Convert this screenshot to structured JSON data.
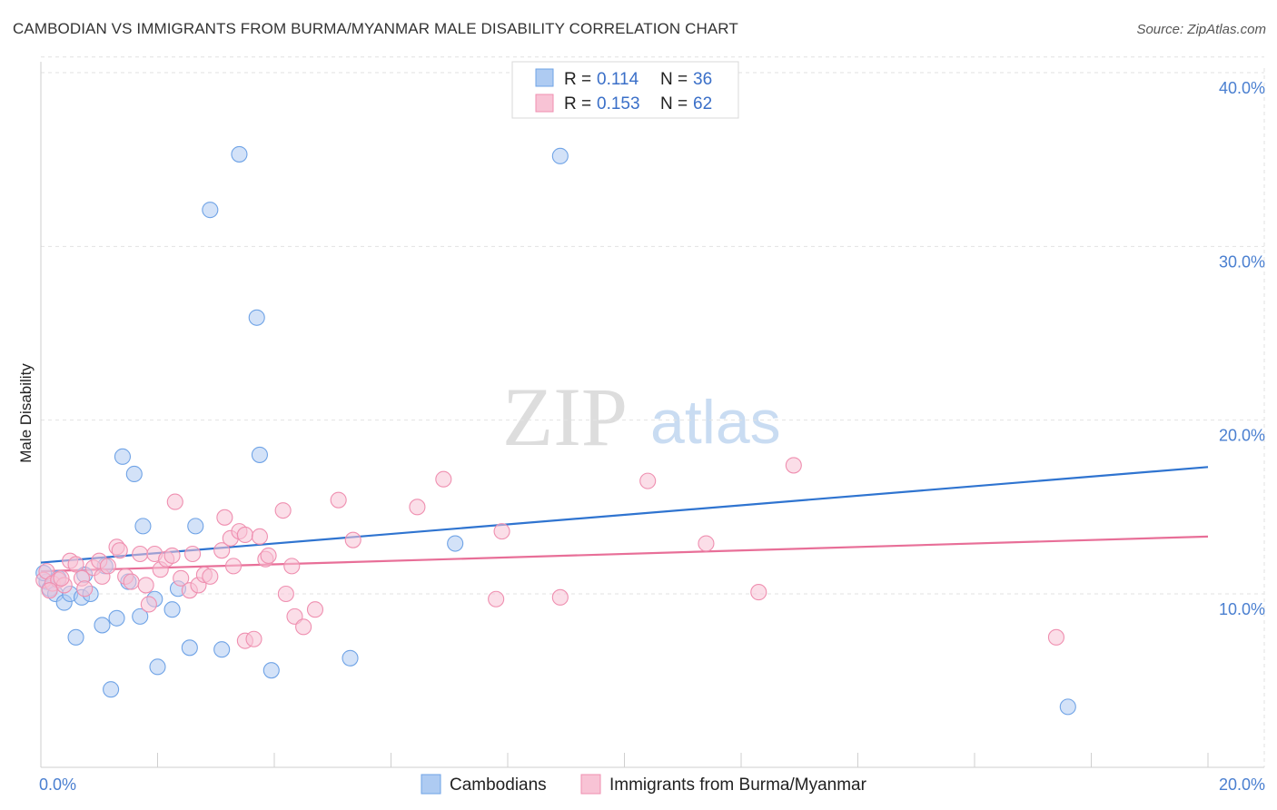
{
  "title": "CAMBODIAN VS IMMIGRANTS FROM BURMA/MYANMAR MALE DISABILITY CORRELATION CHART",
  "source": "Source: ZipAtlas.com",
  "watermark": {
    "zip": "ZIP",
    "atlas": "atlas"
  },
  "chart_data": {
    "type": "scatter",
    "title": "CAMBODIAN VS IMMIGRANTS FROM BURMA/MYANMAR MALE DISABILITY CORRELATION CHART",
    "xlabel": "",
    "ylabel": "Male Disability",
    "xlim": [
      0,
      20
    ],
    "ylim": [
      0,
      42
    ],
    "x_tick_labels": [
      {
        "value": 0,
        "label": "0.0%"
      },
      {
        "value": 20,
        "label": "20.0%"
      }
    ],
    "y_tick_labels": [
      {
        "value": 10,
        "label": "10.0%"
      },
      {
        "value": 20,
        "label": "20.0%"
      },
      {
        "value": 30,
        "label": "30.0%"
      },
      {
        "value": 40,
        "label": "40.0%"
      }
    ],
    "legend": [
      {
        "r_label": "R =",
        "r_value": "0.114",
        "n_label": "N =",
        "n_value": "36"
      },
      {
        "r_label": "R =",
        "r_value": "0.153",
        "n_label": "N =",
        "n_value": "62"
      }
    ],
    "series": [
      {
        "name": "Cambodians",
        "color": "#6fa3e6",
        "fill": "#aecbf2",
        "line_color": "#2f74d0",
        "trend": {
          "x": [
            0,
            20
          ],
          "y": [
            11.8,
            17.3
          ]
        },
        "points": [
          [
            0.1,
            10.7
          ],
          [
            0.15,
            10.3
          ],
          [
            0.25,
            10.0
          ],
          [
            0.3,
            10.9
          ],
          [
            0.4,
            9.5
          ],
          [
            0.5,
            10.0
          ],
          [
            0.6,
            7.5
          ],
          [
            0.7,
            9.8
          ],
          [
            0.75,
            11.1
          ],
          [
            0.85,
            10.0
          ],
          [
            1.05,
            8.2
          ],
          [
            1.1,
            11.6
          ],
          [
            1.3,
            8.6
          ],
          [
            1.4,
            17.9
          ],
          [
            1.5,
            10.7
          ],
          [
            1.6,
            16.9
          ],
          [
            1.7,
            8.7
          ],
          [
            1.75,
            13.9
          ],
          [
            1.95,
            9.7
          ],
          [
            2.0,
            5.8
          ],
          [
            2.25,
            9.1
          ],
          [
            2.35,
            10.3
          ],
          [
            2.55,
            6.9
          ],
          [
            2.65,
            13.9
          ],
          [
            2.9,
            32.1
          ],
          [
            3.1,
            6.8
          ],
          [
            3.4,
            35.3
          ],
          [
            3.7,
            25.9
          ],
          [
            3.75,
            18.0
          ],
          [
            3.95,
            5.6
          ],
          [
            5.3,
            6.3
          ],
          [
            7.1,
            12.9
          ],
          [
            8.9,
            35.2
          ],
          [
            17.6,
            3.5
          ],
          [
            0.05,
            11.2
          ],
          [
            1.2,
            4.5
          ]
        ]
      },
      {
        "name": "Immigrants from Burma/Myanmar",
        "color": "#ef8fb0",
        "fill": "#f8c3d5",
        "line_color": "#e86f98",
        "trend": {
          "x": [
            0,
            20
          ],
          "y": [
            11.3,
            13.3
          ]
        },
        "points": [
          [
            0.05,
            10.8
          ],
          [
            0.1,
            11.3
          ],
          [
            0.2,
            10.6
          ],
          [
            0.3,
            10.8
          ],
          [
            0.4,
            10.5
          ],
          [
            0.5,
            11.9
          ],
          [
            0.6,
            11.7
          ],
          [
            0.7,
            10.9
          ],
          [
            0.75,
            10.3
          ],
          [
            0.9,
            11.5
          ],
          [
            1.0,
            11.9
          ],
          [
            1.05,
            11.0
          ],
          [
            1.15,
            11.6
          ],
          [
            1.3,
            12.7
          ],
          [
            1.35,
            12.5
          ],
          [
            1.45,
            11.0
          ],
          [
            1.55,
            10.7
          ],
          [
            1.7,
            12.3
          ],
          [
            1.8,
            10.5
          ],
          [
            1.85,
            9.4
          ],
          [
            1.95,
            12.3
          ],
          [
            2.05,
            11.4
          ],
          [
            2.15,
            12.0
          ],
          [
            2.25,
            12.2
          ],
          [
            2.3,
            15.3
          ],
          [
            2.4,
            10.9
          ],
          [
            2.55,
            10.2
          ],
          [
            2.6,
            12.3
          ],
          [
            2.7,
            10.5
          ],
          [
            2.8,
            11.1
          ],
          [
            2.9,
            11.0
          ],
          [
            3.1,
            12.5
          ],
          [
            3.15,
            14.4
          ],
          [
            3.25,
            13.2
          ],
          [
            3.3,
            11.6
          ],
          [
            3.4,
            13.6
          ],
          [
            3.5,
            13.4
          ],
          [
            3.5,
            7.3
          ],
          [
            3.65,
            7.4
          ],
          [
            3.75,
            13.3
          ],
          [
            3.85,
            12.0
          ],
          [
            3.9,
            12.2
          ],
          [
            4.15,
            14.8
          ],
          [
            4.2,
            10.0
          ],
          [
            4.3,
            11.6
          ],
          [
            4.35,
            8.7
          ],
          [
            4.5,
            8.1
          ],
          [
            4.7,
            9.1
          ],
          [
            5.1,
            15.4
          ],
          [
            5.35,
            13.1
          ],
          [
            6.45,
            15.0
          ],
          [
            6.9,
            16.6
          ],
          [
            7.8,
            9.7
          ],
          [
            7.9,
            13.6
          ],
          [
            8.9,
            9.8
          ],
          [
            10.4,
            16.5
          ],
          [
            11.4,
            12.9
          ],
          [
            12.3,
            10.1
          ],
          [
            12.9,
            17.4
          ],
          [
            17.4,
            7.5
          ],
          [
            0.15,
            10.2
          ],
          [
            0.35,
            10.9
          ]
        ]
      }
    ]
  }
}
